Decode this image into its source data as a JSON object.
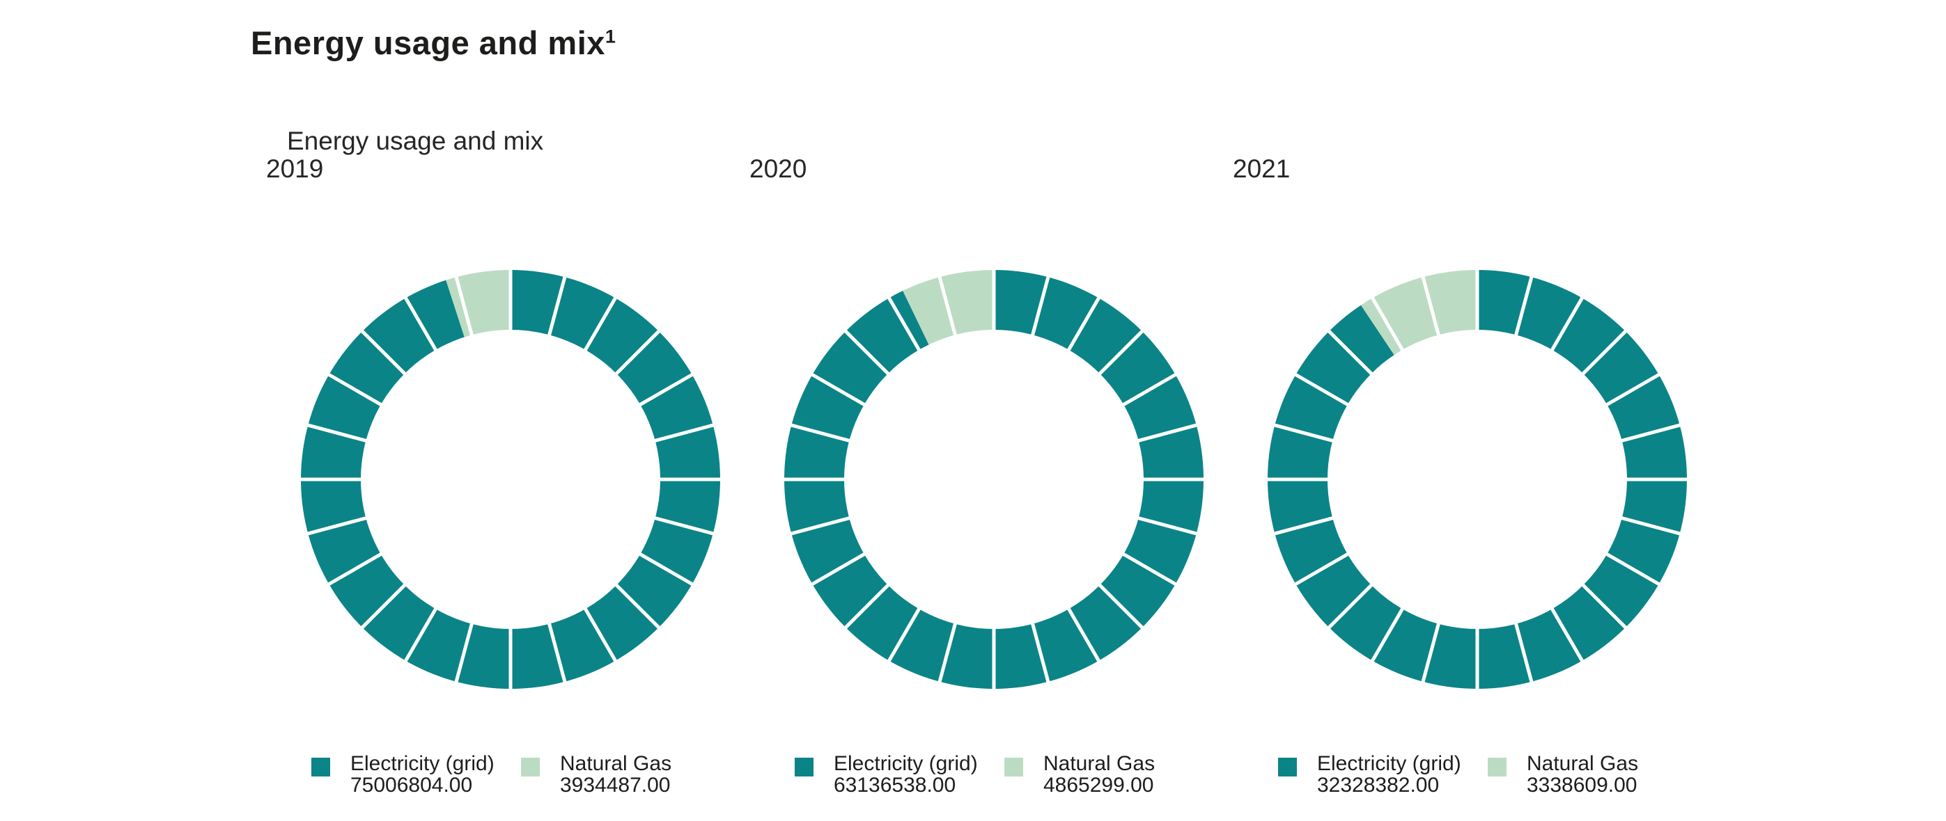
{
  "title": {
    "text": "Energy usage and mix",
    "superscript": "1"
  },
  "subtitle": "Energy usage and mix",
  "colors": {
    "electricity": "#0b8488",
    "natural_gas": "#bcdbc3",
    "gap": "#ffffff",
    "text": "#1d1d1b"
  },
  "chart_data": [
    {
      "type": "pie",
      "variant": "segmented-donut",
      "year": "2019",
      "segments_per_ring": 24,
      "start_angle_deg": 0,
      "direction": "clockwise",
      "series": [
        {
          "name": "Electricity (grid)",
          "value": 75006804,
          "display": "75006804.00",
          "share_pct": 95.0
        },
        {
          "name": "Natural Gas",
          "value": 3934487,
          "display": "3934487.00",
          "share_pct": 5.0
        }
      ]
    },
    {
      "type": "pie",
      "variant": "segmented-donut",
      "year": "2020",
      "segments_per_ring": 24,
      "start_angle_deg": 0,
      "direction": "clockwise",
      "series": [
        {
          "name": "Electricity (grid)",
          "value": 63136538,
          "display": "63136538.00",
          "share_pct": 92.8
        },
        {
          "name": "Natural Gas",
          "value": 4865299,
          "display": "4865299.00",
          "share_pct": 7.2
        }
      ]
    },
    {
      "type": "pie",
      "variant": "segmented-donut",
      "year": "2021",
      "segments_per_ring": 24,
      "start_angle_deg": 0,
      "direction": "clockwise",
      "series": [
        {
          "name": "Electricity (grid)",
          "value": 32328382,
          "display": "32328382.00",
          "share_pct": 90.6
        },
        {
          "name": "Natural Gas",
          "value": 3338609,
          "display": "3338609.00",
          "share_pct": 9.4
        }
      ]
    }
  ]
}
